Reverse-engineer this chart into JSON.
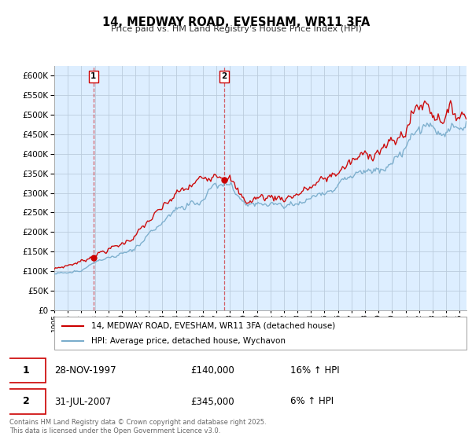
{
  "title": "14, MEDWAY ROAD, EVESHAM, WR11 3FA",
  "subtitle": "Price paid vs. HM Land Registry's House Price Index (HPI)",
  "legend_line1": "14, MEDWAY ROAD, EVESHAM, WR11 3FA (detached house)",
  "legend_line2": "HPI: Average price, detached house, Wychavon",
  "marker1_date": "28-NOV-1997",
  "marker1_price": "£140,000",
  "marker1_hpi": "16% ↑ HPI",
  "marker1_value": 140000,
  "marker1_x": 1997.9,
  "marker2_date": "31-JUL-2007",
  "marker2_price": "£345,000",
  "marker2_hpi": "6% ↑ HPI",
  "marker2_value": 345000,
  "marker2_x": 2007.58,
  "footnote": "Contains HM Land Registry data © Crown copyright and database right 2025.\nThis data is licensed under the Open Government Licence v3.0.",
  "red_color": "#cc0000",
  "blue_color": "#7aadcc",
  "marker_box_color": "#cc0000",
  "chart_bg_color": "#ddeeff",
  "ylim_max": 625000,
  "ytick_step": 50000,
  "background_color": "#ffffff",
  "grid_color": "#bbccdd"
}
